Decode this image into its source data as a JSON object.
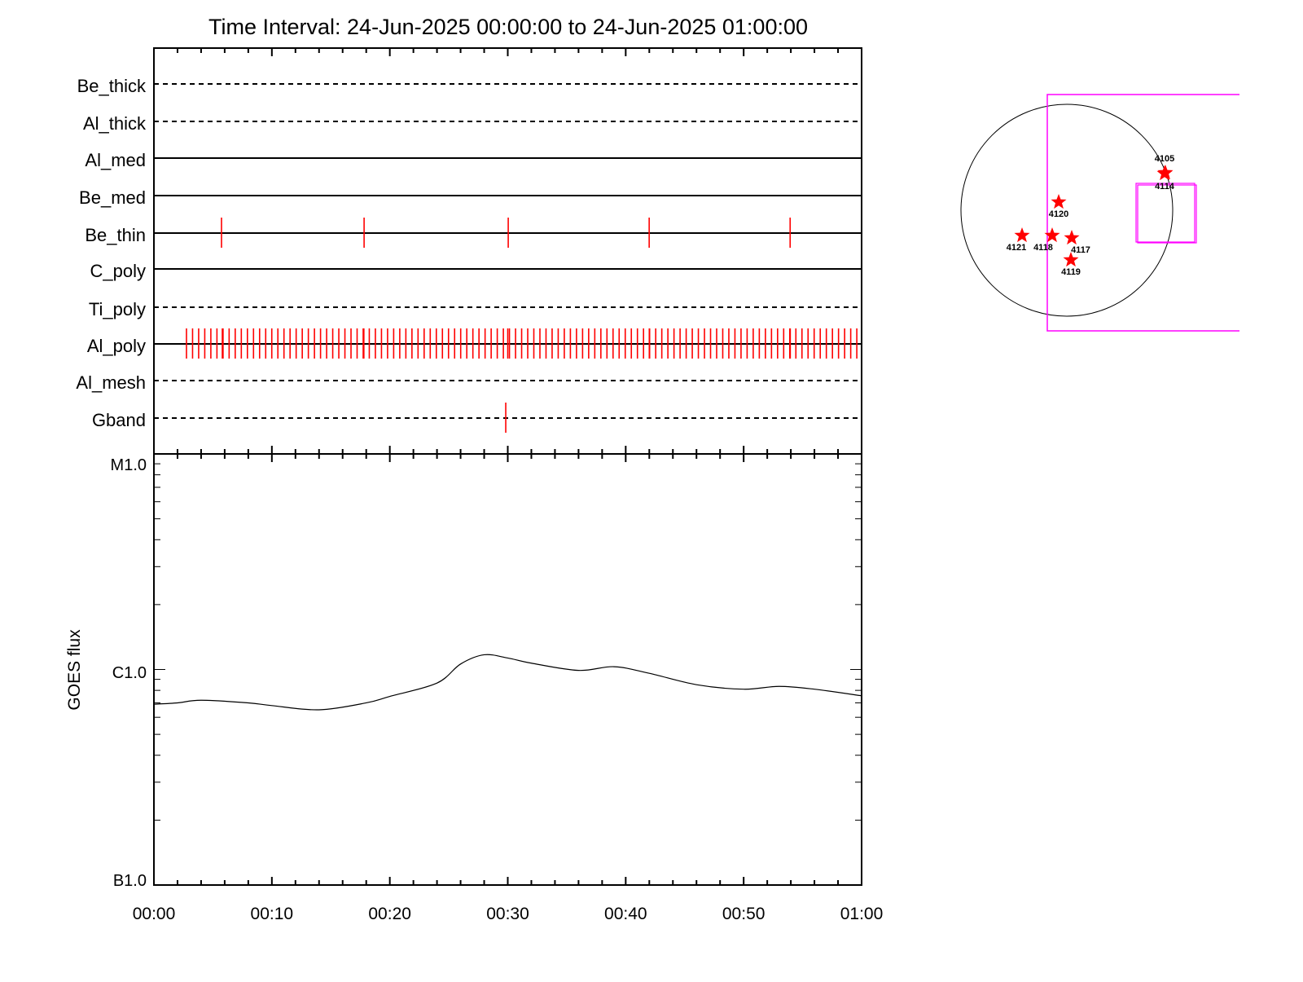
{
  "chart_data": [
    {
      "type": "timeline",
      "title": "Time Interval: 24-Jun-2025 00:00:00 to 24-Jun-2025 01:00:00",
      "xlim_minutes": [
        0,
        60
      ],
      "x_tick_labels": [
        "00:00",
        "00:10",
        "00:20",
        "00:30",
        "00:40",
        "00:50",
        "01:00"
      ],
      "channels": [
        {
          "name": "Be_thick",
          "style": "dashed",
          "exposures_min": []
        },
        {
          "name": "Al_thick",
          "style": "dashed",
          "exposures_min": []
        },
        {
          "name": "Al_med",
          "style": "solid",
          "exposures_min": []
        },
        {
          "name": "Be_med",
          "style": "solid",
          "exposures_min": []
        },
        {
          "name": "Be_thin",
          "style": "solid",
          "exposures_min": [
            5.73,
            17.82,
            30.04,
            41.99,
            53.94
          ]
        },
        {
          "name": "C_poly",
          "style": "solid",
          "exposures_min": []
        },
        {
          "name": "Ti_poly",
          "style": "dashed",
          "exposures_min": []
        },
        {
          "name": "Al_poly",
          "style": "solid",
          "exposures_regular": {
            "start_min": 2.76,
            "end_min": 59.9,
            "cadence_s": 31
          },
          "exposures_min": [
            5.8,
            17.8,
            30.0,
            42.0,
            53.95
          ]
        },
        {
          "name": "Al_mesh",
          "style": "dashed",
          "exposures_min": []
        },
        {
          "name": "Gband",
          "style": "dashed",
          "exposures_min": [
            29.83
          ]
        }
      ],
      "exposure_color": "#ff0000"
    },
    {
      "type": "line",
      "ylabel": "GOES flux",
      "yscale": "log",
      "ylim": [
        1e-07,
        1e-05
      ],
      "y_tick_labels": [
        "B1.0",
        "C1.0",
        "M1.0"
      ],
      "x_tick_labels": [
        "00:00",
        "00:10",
        "00:20",
        "00:30",
        "00:40",
        "00:50",
        "01:00"
      ],
      "xlim_minutes": [
        0,
        60
      ],
      "x": [
        0,
        2,
        4,
        8,
        10,
        14,
        18,
        20,
        24,
        26,
        28,
        30,
        32,
        36,
        39,
        42,
        46,
        50,
        53,
        56,
        60
      ],
      "values": [
        6.9e-07,
        7e-07,
        7.2e-07,
        7e-07,
        6.8e-07,
        6.5e-07,
        7e-07,
        7.5e-07,
        8.65e-07,
        1.06e-06,
        1.17e-06,
        1.13e-06,
        1.07e-06,
        9.9e-07,
        1.03e-06,
        9.6e-07,
        8.5e-07,
        8.1e-07,
        8.35e-07,
        8.1e-07,
        7.55e-07
      ],
      "line_color": "#000000"
    },
    {
      "type": "scatter",
      "description_kind": "solar disk map",
      "disk_color": "#000000",
      "fov_color": "#ff00ff",
      "marker_color": "#ff0000",
      "regions": [
        {
          "label": "4121"
        },
        {
          "label": "4118"
        },
        {
          "label": "4117"
        },
        {
          "label": "4119"
        },
        {
          "label": "4120"
        },
        {
          "label": "4105"
        },
        {
          "label": "4114"
        }
      ]
    }
  ]
}
